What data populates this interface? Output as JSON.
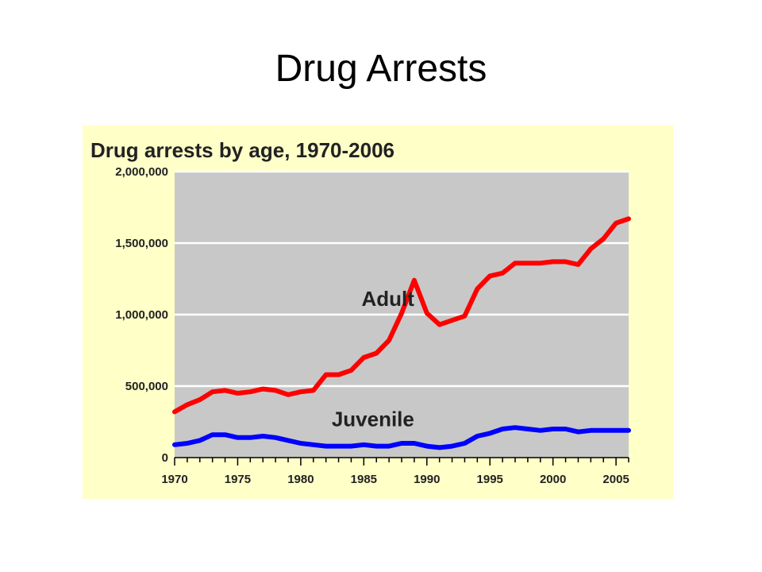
{
  "slide": {
    "title": "Drug Arrests"
  },
  "colors": {
    "panel_background": "#ffffc8",
    "plot_background": "#c8c8c8",
    "grid": "#ffffff",
    "adult": "#ff0000",
    "juvenile": "#0000ff",
    "text": "#222222"
  },
  "chart_data": {
    "type": "line",
    "title": "Drug arrests by age, 1970-2006",
    "xlabel": "",
    "ylabel": "",
    "xlim": [
      1970,
      2006
    ],
    "ylim": [
      0,
      2000000
    ],
    "grid": true,
    "legend": "inline labels",
    "y_ticks": [
      {
        "value": 0,
        "label": "0"
      },
      {
        "value": 500000,
        "label": "500,000"
      },
      {
        "value": 1000000,
        "label": "1,000,000"
      },
      {
        "value": 1500000,
        "label": "1,500,000"
      },
      {
        "value": 2000000,
        "label": "2,000,000"
      }
    ],
    "x_ticks": [
      {
        "value": 1970,
        "label": "1970"
      },
      {
        "value": 1975,
        "label": "1975"
      },
      {
        "value": 1980,
        "label": "1980"
      },
      {
        "value": 1985,
        "label": "1985"
      },
      {
        "value": 1990,
        "label": "1990"
      },
      {
        "value": 1995,
        "label": "1995"
      },
      {
        "value": 2000,
        "label": "2000"
      },
      {
        "value": 2005,
        "label": "2005"
      }
    ],
    "x": [
      1970,
      1971,
      1972,
      1973,
      1974,
      1975,
      1976,
      1977,
      1978,
      1979,
      1980,
      1981,
      1982,
      1983,
      1984,
      1985,
      1986,
      1987,
      1988,
      1989,
      1990,
      1991,
      1992,
      1993,
      1994,
      1995,
      1996,
      1997,
      1998,
      1999,
      2000,
      2001,
      2002,
      2003,
      2004,
      2005,
      2006
    ],
    "series": [
      {
        "name": "Adult",
        "label_x": 1989,
        "label_y": 1060000,
        "values": [
          320000,
          370000,
          405000,
          460000,
          470000,
          450000,
          460000,
          480000,
          470000,
          440000,
          460000,
          470000,
          580000,
          580000,
          610000,
          700000,
          730000,
          820000,
          1010000,
          1240000,
          1010000,
          930000,
          960000,
          990000,
          1180000,
          1270000,
          1290000,
          1360000,
          1360000,
          1360000,
          1370000,
          1370000,
          1350000,
          1460000,
          1530000,
          1640000,
          1670000
        ]
      },
      {
        "name": "Juvenile",
        "label_x": 1989,
        "label_y": 220000,
        "values": [
          90000,
          100000,
          120000,
          160000,
          160000,
          140000,
          140000,
          150000,
          140000,
          120000,
          100000,
          90000,
          80000,
          80000,
          80000,
          90000,
          80000,
          80000,
          100000,
          100000,
          80000,
          70000,
          80000,
          100000,
          150000,
          170000,
          200000,
          210000,
          200000,
          190000,
          200000,
          200000,
          180000,
          190000,
          190000,
          190000,
          190000
        ]
      }
    ]
  }
}
